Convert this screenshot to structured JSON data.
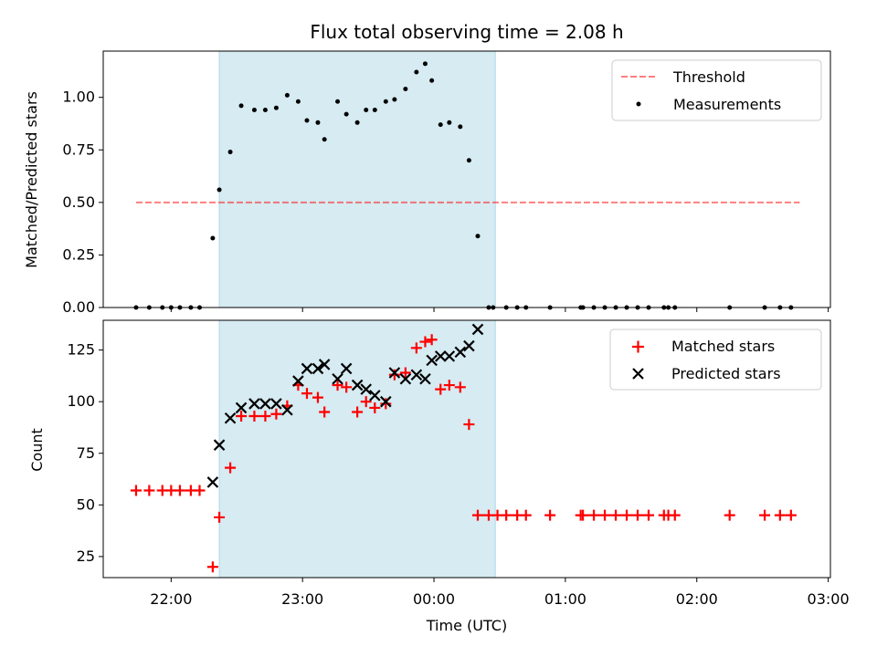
{
  "figure": {
    "title": "Flux total observing time = 2.08 h",
    "xlabel": "Time (UTC)"
  },
  "colors": {
    "shade": "#add8e6",
    "threshold": "#ff0000",
    "measurement": "#000000",
    "matched": "#ff0000",
    "predicted": "#000000"
  },
  "chart_data": [
    {
      "type": "scatter",
      "ylabel": "Matched/Predicted stars",
      "xlim": [
        "21:29",
        "03:01"
      ],
      "ylim": [
        0,
        1.22
      ],
      "x_ticks": [
        "22:00",
        "23:00",
        "00:00",
        "01:00",
        "02:00",
        "03:00"
      ],
      "y_ticks": [
        "0.00",
        "0.25",
        "0.50",
        "0.75",
        "1.00"
      ],
      "y_tick_values": [
        0,
        0.25,
        0.5,
        0.75,
        1.0
      ],
      "shaded_span": [
        "22:22",
        "00:28"
      ],
      "legend_position": "top-right",
      "series": [
        {
          "name": "Threshold",
          "style": "dashed-line",
          "x": [
            "21:44",
            "02:47"
          ],
          "y": [
            0.5,
            0.5
          ]
        },
        {
          "name": "Measurements",
          "style": "dot",
          "x": [
            "21:44",
            "21:50",
            "21:56",
            "22:00",
            "22:04",
            "22:09",
            "22:13",
            "22:19",
            "22:22",
            "22:27",
            "22:32",
            "22:38",
            "22:43",
            "22:48",
            "22:53",
            "22:58",
            "23:02",
            "23:07",
            "23:10",
            "23:16",
            "23:20",
            "23:25",
            "23:29",
            "23:33",
            "23:38",
            "23:42",
            "23:47",
            "23:52",
            "23:56",
            "23:59",
            "00:03",
            "00:07",
            "00:12",
            "00:16",
            "00:20",
            "00:25",
            "00:27",
            "00:33",
            "00:38",
            "00:42",
            "00:53",
            "01:07",
            "01:08",
            "01:13",
            "01:18",
            "01:23",
            "01:28",
            "01:33",
            "01:38",
            "01:45",
            "01:47",
            "01:50",
            "02:15",
            "02:31",
            "02:38",
            "02:43"
          ],
          "y": [
            0,
            0,
            0,
            0,
            0,
            0,
            0,
            0.33,
            0.56,
            0.74,
            0.96,
            0.94,
            0.94,
            0.95,
            1.01,
            0.98,
            0.89,
            0.88,
            0.8,
            0.98,
            0.92,
            0.88,
            0.94,
            0.94,
            0.98,
            0.99,
            1.04,
            1.12,
            1.16,
            1.08,
            0.87,
            0.88,
            0.86,
            0.7,
            0.34,
            0,
            0,
            0,
            0,
            0,
            0,
            0,
            0,
            0,
            0,
            0,
            0,
            0,
            0,
            0,
            0,
            0,
            0,
            0,
            0,
            0
          ]
        }
      ]
    },
    {
      "type": "scatter",
      "ylabel": "Count",
      "xlim": [
        "21:29",
        "03:01"
      ],
      "ylim": [
        14.8,
        139.4
      ],
      "x_ticks": [
        "22:00",
        "23:00",
        "00:00",
        "01:00",
        "02:00",
        "03:00"
      ],
      "y_ticks": [
        "25",
        "50",
        "75",
        "100",
        "125"
      ],
      "y_tick_values": [
        25,
        50,
        75,
        100,
        125
      ],
      "shaded_span": [
        "22:22",
        "00:28"
      ],
      "legend_position": "top-right",
      "series": [
        {
          "name": "Matched stars",
          "marker": "plus",
          "x": [
            "21:44",
            "21:50",
            "21:56",
            "22:00",
            "22:04",
            "22:09",
            "22:13",
            "22:19",
            "22:22",
            "22:27",
            "22:32",
            "22:38",
            "22:43",
            "22:48",
            "22:53",
            "22:58",
            "23:02",
            "23:07",
            "23:10",
            "23:16",
            "23:20",
            "23:25",
            "23:29",
            "23:33",
            "23:38",
            "23:42",
            "23:47",
            "23:52",
            "23:56",
            "23:59",
            "00:03",
            "00:07",
            "00:12",
            "00:16",
            "00:20",
            "00:25",
            "00:29",
            "00:33",
            "00:38",
            "00:42",
            "00:53",
            "01:07",
            "01:08",
            "01:13",
            "01:18",
            "01:23",
            "01:28",
            "01:33",
            "01:38",
            "01:45",
            "01:47",
            "01:50",
            "02:15",
            "02:31",
            "02:38",
            "02:43"
          ],
          "y": [
            57,
            57,
            57,
            57,
            57,
            57,
            57,
            20,
            44,
            68,
            93,
            93,
            93,
            94,
            98,
            108,
            104,
            102,
            95,
            108,
            107,
            95,
            100,
            97,
            99,
            113,
            114,
            126,
            129,
            130,
            106,
            108,
            107,
            89,
            45,
            45,
            45,
            45,
            45,
            45,
            45,
            45,
            45,
            45,
            45,
            45,
            45,
            45,
            45,
            45,
            45,
            45,
            45,
            45,
            45,
            45
          ]
        },
        {
          "name": "Predicted stars",
          "marker": "x",
          "x": [
            "22:19",
            "22:22",
            "22:27",
            "22:32",
            "22:38",
            "22:43",
            "22:48",
            "22:53",
            "22:58",
            "23:02",
            "23:07",
            "23:10",
            "23:16",
            "23:20",
            "23:25",
            "23:29",
            "23:33",
            "23:38",
            "23:42",
            "23:47",
            "23:52",
            "23:56",
            "23:59",
            "00:03",
            "00:07",
            "00:12",
            "00:16",
            "00:20"
          ],
          "y": [
            61,
            79,
            92,
            97,
            99,
            99,
            99,
            96,
            110,
            116,
            116,
            118,
            111,
            116,
            108,
            106,
            103,
            100,
            114,
            111,
            113,
            111,
            120,
            122,
            122,
            124,
            127,
            135
          ]
        }
      ]
    }
  ]
}
